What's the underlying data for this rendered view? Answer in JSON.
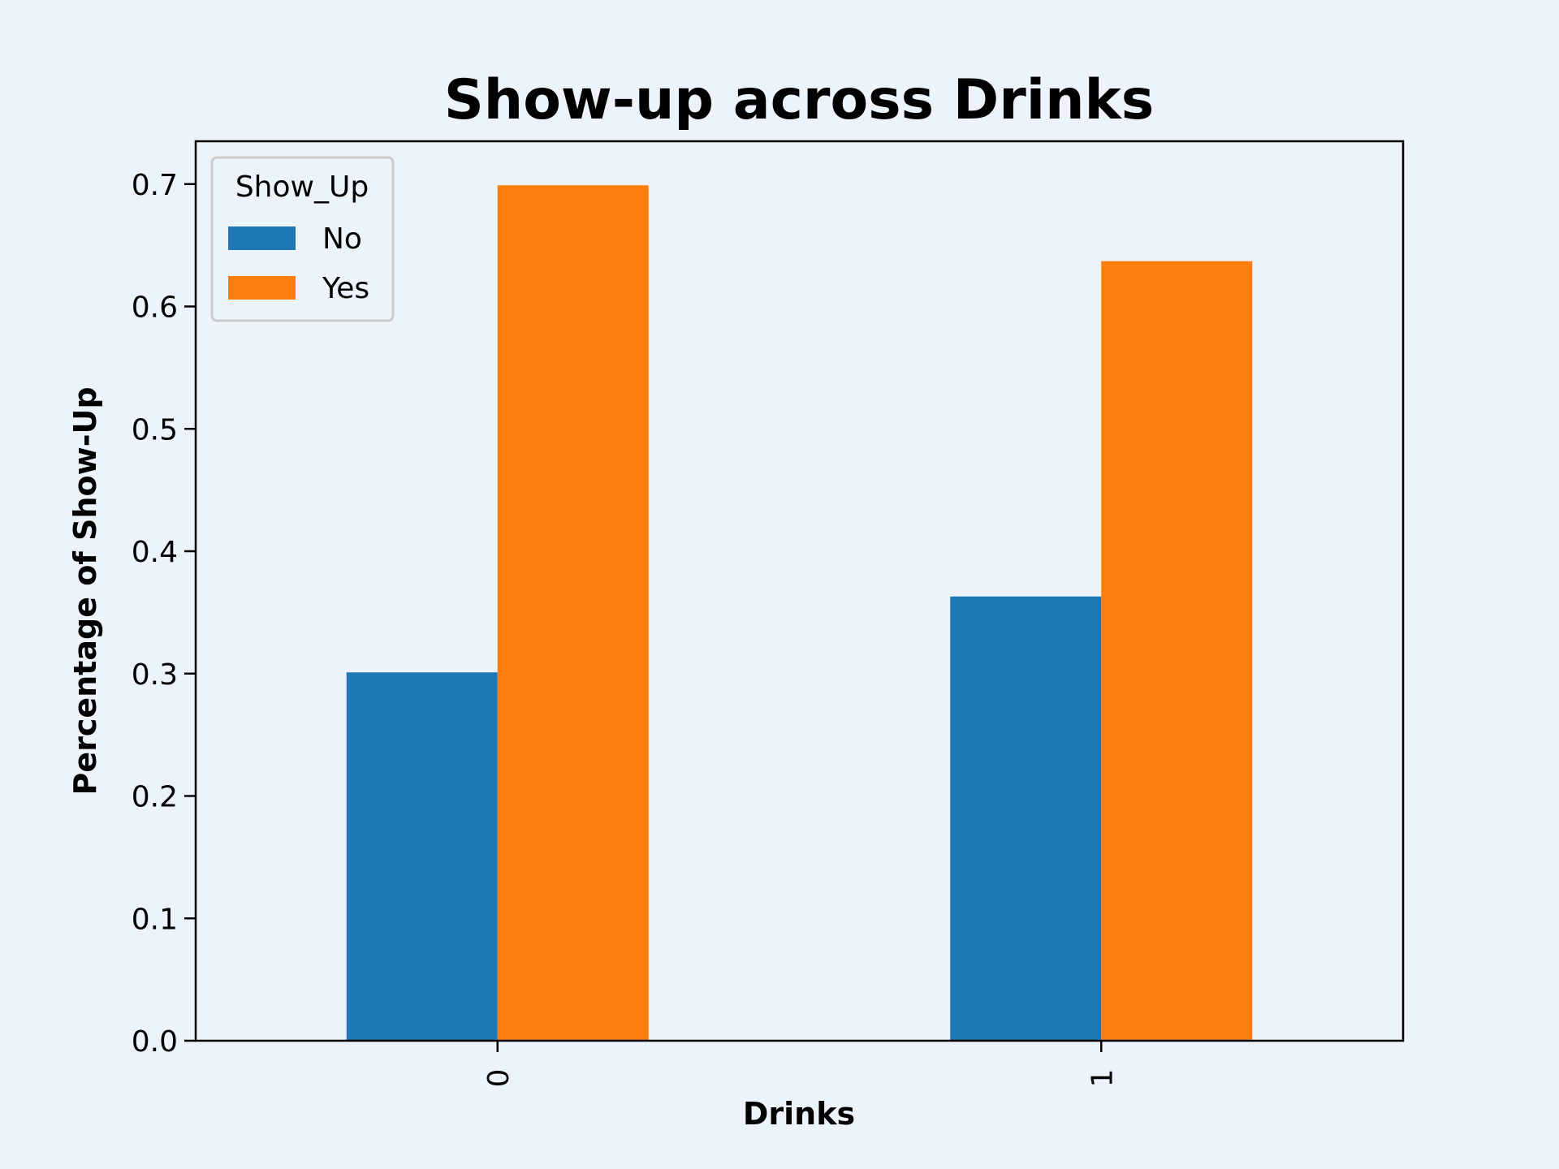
{
  "chart_data": {
    "type": "bar",
    "title": "Show-up across Drinks",
    "xlabel": "Drinks",
    "ylabel": "Percentage of Show-Up",
    "categories": [
      "0",
      "1"
    ],
    "series": [
      {
        "name": "No",
        "values": [
          0.301,
          0.363
        ],
        "color": "#1f77b4"
      },
      {
        "name": "Yes",
        "values": [
          0.699,
          0.637
        ],
        "color": "#ff7f0e"
      }
    ],
    "ylim": [
      0,
      0.735
    ],
    "yticks": [
      "0.0",
      "0.1",
      "0.2",
      "0.3",
      "0.4",
      "0.5",
      "0.6",
      "0.7"
    ],
    "legend": {
      "title": "Show_Up",
      "placement": "top-left"
    },
    "grid": false,
    "background": "#ecf3fb"
  }
}
